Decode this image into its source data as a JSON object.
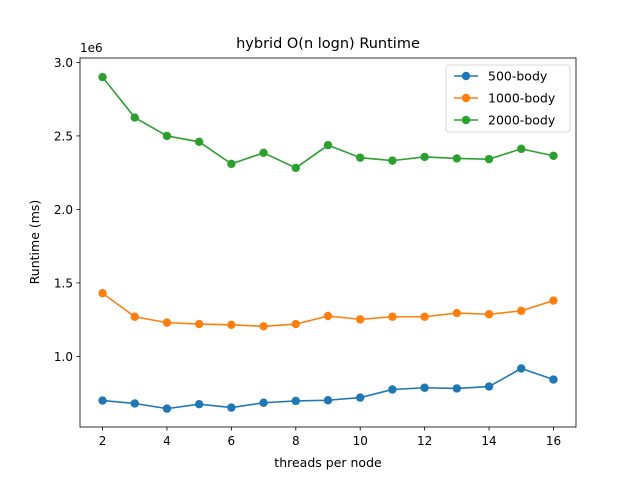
{
  "chart_data": {
    "type": "line",
    "title": "hybrid O(n logn) Runtime",
    "xlabel": "threads per node",
    "ylabel": "Runtime (ms)",
    "y_offset_label": "1e6",
    "xlim": [
      1.3,
      16.7
    ],
    "ylim": [
      520000,
      3030000
    ],
    "xticks": [
      2,
      4,
      6,
      8,
      10,
      12,
      14,
      16
    ],
    "yticks": [
      1000000,
      1500000,
      2000000,
      2500000,
      3000000
    ],
    "ytick_labels": [
      "1.0",
      "1.5",
      "2.0",
      "2.5",
      "3.0"
    ],
    "grid": false,
    "legend_position": "top-right",
    "x": [
      2,
      3,
      4,
      5,
      6,
      7,
      8,
      9,
      10,
      11,
      12,
      13,
      14,
      15,
      16
    ],
    "series": [
      {
        "name": "500-body",
        "color": "#1f77b4",
        "values": [
          700000,
          680000,
          645000,
          675000,
          652000,
          685000,
          697000,
          702000,
          720000,
          775000,
          787000,
          782000,
          795000,
          918000,
          843000
        ]
      },
      {
        "name": "1000-body",
        "color": "#ff7f0e",
        "values": [
          1430000,
          1270000,
          1230000,
          1220000,
          1215000,
          1205000,
          1220000,
          1275000,
          1252000,
          1270000,
          1270000,
          1295000,
          1287000,
          1310000,
          1380000
        ]
      },
      {
        "name": "2000-body",
        "color": "#2ca02c",
        "values": [
          2900000,
          2625000,
          2500000,
          2460000,
          2310000,
          2385000,
          2282000,
          2437000,
          2352000,
          2332000,
          2357000,
          2347000,
          2342000,
          2412000,
          2365000
        ]
      }
    ]
  }
}
